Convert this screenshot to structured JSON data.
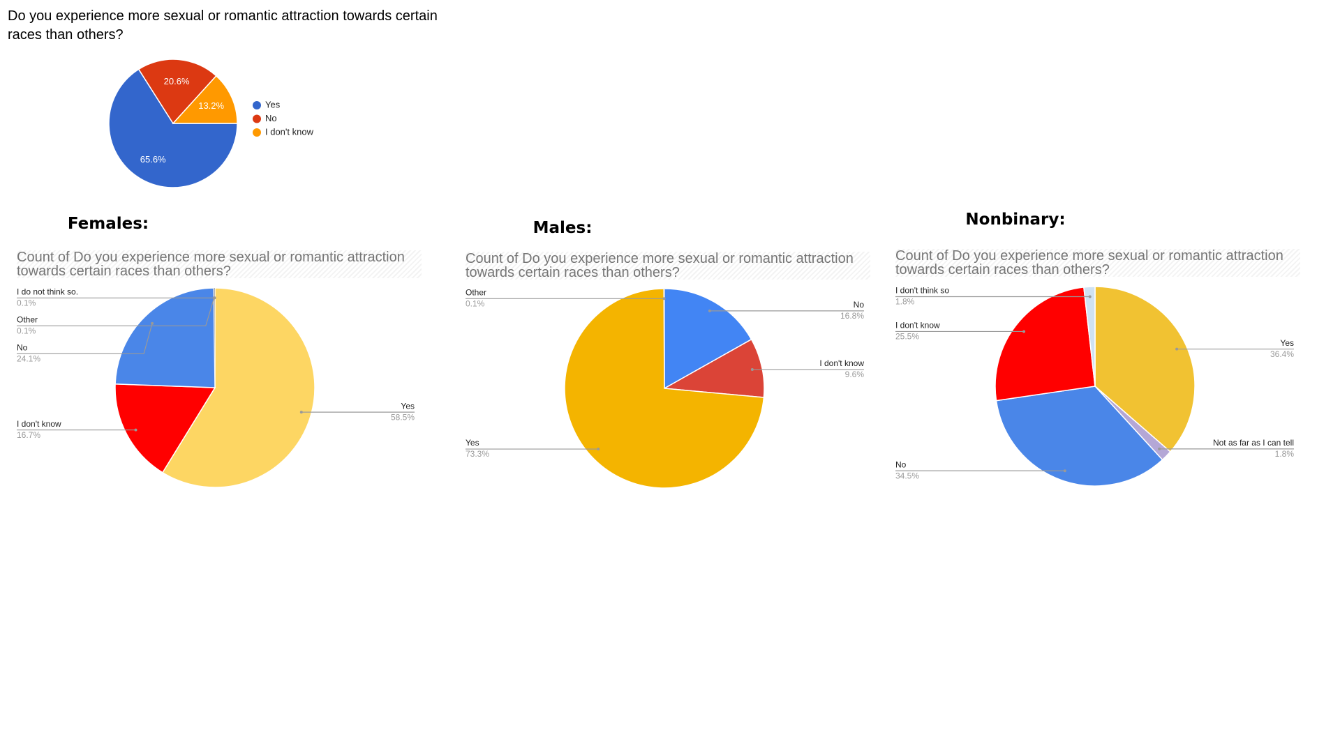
{
  "chart_data": [
    {
      "type": "pie",
      "title": "Do you experience more sexual or romantic attraction towards certain races than others?",
      "categories": [
        "Yes",
        "No",
        "I don't know"
      ],
      "values": [
        65.6,
        20.6,
        13.2
      ],
      "value_labels": [
        "65.6%",
        "20.6%",
        "13.2%"
      ],
      "colors": [
        "#3366cc",
        "#dc3912",
        "#ff9900"
      ],
      "legend": "right"
    },
    {
      "type": "pie",
      "heading": "Females:",
      "title": "Count of Do you experience more sexual or romantic attraction towards certain races than others?",
      "categories": [
        "Yes",
        "I don't know",
        "No",
        "Other",
        "I do not think so."
      ],
      "values": [
        58.5,
        16.7,
        24.1,
        0.1,
        0.1
      ],
      "value_labels": [
        "58.5%",
        "16.7%",
        "24.1%",
        "0.1%",
        "0.1%"
      ],
      "colors": [
        "#fdd663",
        "#ff0000",
        "#4a86e8",
        "#999999",
        "#777777"
      ],
      "legend": "labeled"
    },
    {
      "type": "pie",
      "heading": "Males:",
      "title": "Count of Do you experience more sexual or romantic attraction towards certain races than others?",
      "categories": [
        "No",
        "I don't know",
        "Yes",
        "Other"
      ],
      "values": [
        16.8,
        9.6,
        73.3,
        0.1
      ],
      "value_labels": [
        "16.8%",
        "9.6%",
        "73.3%",
        "0.1%"
      ],
      "colors": [
        "#4285f4",
        "#db4437",
        "#f4b400",
        "#999999"
      ],
      "legend": "labeled"
    },
    {
      "type": "pie",
      "heading": "Nonbinary:",
      "title": "Count of Do you experience more sexual or romantic attraction towards certain races than others?",
      "categories": [
        "Yes",
        "Not as far as I can tell",
        "No",
        "I don't know",
        "I don't think so"
      ],
      "values": [
        36.4,
        1.8,
        34.5,
        25.5,
        1.8
      ],
      "value_labels": [
        "36.4%",
        "1.8%",
        "34.5%",
        "25.5%",
        "1.8%"
      ],
      "colors": [
        "#f1c232",
        "#b4a7d6",
        "#4a86e8",
        "#ff0000",
        "#cfe2f3"
      ],
      "legend": "labeled"
    }
  ]
}
